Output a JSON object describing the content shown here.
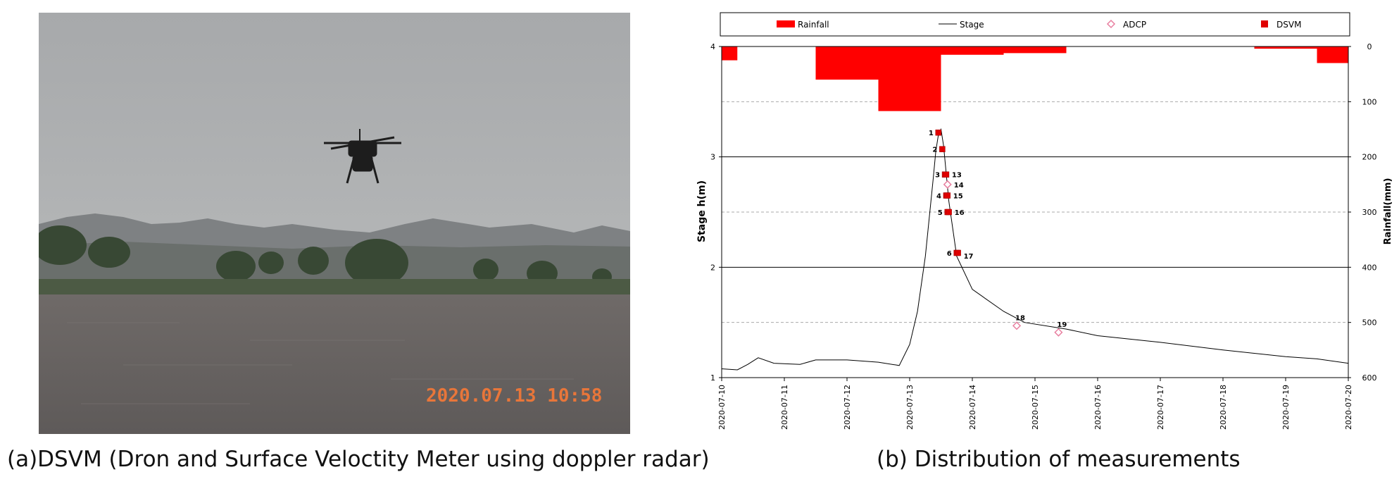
{
  "captions": {
    "a": "(a)DSVM (Dron and Surface Veloctity Meter using doppler radar)",
    "b": "(b) Distribution of measurements"
  },
  "photo": {
    "timestamp": "2020.07.13 10:58",
    "colors": {
      "sky": "#a9abad",
      "mountain": "#7b7e80",
      "trees": "#3a4a32",
      "water": "#6d6866",
      "timestamp": "#e8763a"
    }
  },
  "chart_data": {
    "type": "line",
    "title": "",
    "ylabel": "Stage h(m)",
    "y2label": "Rainfall(mm)",
    "xlabel": "",
    "xlim": [
      "2020-07-10",
      "2020-07-20"
    ],
    "ylim": [
      1,
      4
    ],
    "y2lim": [
      0,
      600
    ],
    "y2_inverted": true,
    "x_ticks": [
      "2020-07-10",
      "2020-07-11",
      "2020-07-12",
      "2020-07-13",
      "2020-07-14",
      "2020-07-15",
      "2020-07-16",
      "2020-07-17",
      "2020-07-18",
      "2020-07-19",
      "2020-07-20"
    ],
    "y_ticks": [
      "1",
      "2",
      "3",
      "4"
    ],
    "y2_ticks": [
      "0",
      "100",
      "200",
      "300",
      "400",
      "500",
      "600"
    ],
    "legend_position": "top",
    "legend": [
      {
        "name": "Rainfall",
        "marker": "bar",
        "color": "#ff0000"
      },
      {
        "name": "Stage",
        "marker": "line",
        "color": "#000000"
      },
      {
        "name": "ADCP",
        "marker": "diamond",
        "color": "#e87fa0"
      },
      {
        "name": "DSVM",
        "marker": "square",
        "color": "#e00000"
      }
    ],
    "rainfall": {
      "name": "Rainfall",
      "bars": [
        {
          "start": "2020-07-10 00:00",
          "end": "2020-07-10 06:00",
          "value": 25
        },
        {
          "start": "2020-07-11 12:00",
          "end": "2020-07-12 12:00",
          "value": 60
        },
        {
          "start": "2020-07-12 12:00",
          "end": "2020-07-13 12:00",
          "value": 117
        },
        {
          "start": "2020-07-13 12:00",
          "end": "2020-07-14 12:00",
          "value": 15
        },
        {
          "start": "2020-07-14 12:00",
          "end": "2020-07-15 12:00",
          "value": 12
        },
        {
          "start": "2020-07-18 12:00",
          "end": "2020-07-19 12:00",
          "value": 4
        },
        {
          "start": "2020-07-19 12:00",
          "end": "2020-07-20 00:00",
          "value": 30
        }
      ]
    },
    "stage": {
      "name": "Stage",
      "points": [
        [
          "2020-07-10 00:00",
          1.08
        ],
        [
          "2020-07-10 06:00",
          1.07
        ],
        [
          "2020-07-10 10:00",
          1.12
        ],
        [
          "2020-07-10 14:00",
          1.18
        ],
        [
          "2020-07-10 20:00",
          1.13
        ],
        [
          "2020-07-11 06:00",
          1.12
        ],
        [
          "2020-07-11 12:00",
          1.16
        ],
        [
          "2020-07-12 00:00",
          1.16
        ],
        [
          "2020-07-12 12:00",
          1.14
        ],
        [
          "2020-07-12 20:00",
          1.11
        ],
        [
          "2020-07-13 00:00",
          1.3
        ],
        [
          "2020-07-13 03:00",
          1.6
        ],
        [
          "2020-07-13 06:00",
          2.1
        ],
        [
          "2020-07-13 09:00",
          2.8
        ],
        [
          "2020-07-13 10:00",
          3.05
        ],
        [
          "2020-07-13 11:00",
          3.2
        ],
        [
          "2020-07-13 12:00",
          3.25
        ],
        [
          "2020-07-13 13:00",
          3.1
        ],
        [
          "2020-07-13 15:00",
          2.6
        ],
        [
          "2020-07-13 18:00",
          2.1
        ],
        [
          "2020-07-14 00:00",
          1.8
        ],
        [
          "2020-07-14 12:00",
          1.6
        ],
        [
          "2020-07-14 20:00",
          1.5
        ],
        [
          "2020-07-15 12:00",
          1.44
        ],
        [
          "2020-07-16 00:00",
          1.38
        ],
        [
          "2020-07-17 00:00",
          1.32
        ],
        [
          "2020-07-18 00:00",
          1.25
        ],
        [
          "2020-07-19 00:00",
          1.19
        ],
        [
          "2020-07-19 12:00",
          1.17
        ],
        [
          "2020-07-20 00:00",
          1.13
        ]
      ]
    },
    "adcp": {
      "name": "ADCP",
      "points": [
        {
          "label": "14",
          "x": "2020-07-13 14:30",
          "y": 2.75
        },
        {
          "label": "18",
          "x": "2020-07-14 17:00",
          "y": 1.47
        },
        {
          "label": "19",
          "x": "2020-07-15 09:00",
          "y": 1.41
        }
      ]
    },
    "dsvm": {
      "name": "DSVM",
      "points": [
        {
          "label": "1",
          "x": "2020-07-13 11:00",
          "y": 3.22
        },
        {
          "label": "2",
          "x": "2020-07-13 12:30",
          "y": 3.07
        },
        {
          "label": "3",
          "x": "2020-07-13 13:30",
          "y": 2.84
        },
        {
          "label": "4",
          "x": "2020-07-13 14:00",
          "y": 2.65
        },
        {
          "label": "5",
          "x": "2020-07-13 14:30",
          "y": 2.5
        },
        {
          "label": "6",
          "x": "2020-07-13 18:00",
          "y": 2.13
        },
        {
          "label": "13",
          "x": "2020-07-13 14:00",
          "y": 2.84
        },
        {
          "label": "15",
          "x": "2020-07-13 14:30",
          "y": 2.65
        },
        {
          "label": "16",
          "x": "2020-07-13 15:00",
          "y": 2.5
        },
        {
          "label": "17",
          "x": "2020-07-13 18:30",
          "y": 2.13
        }
      ]
    }
  }
}
